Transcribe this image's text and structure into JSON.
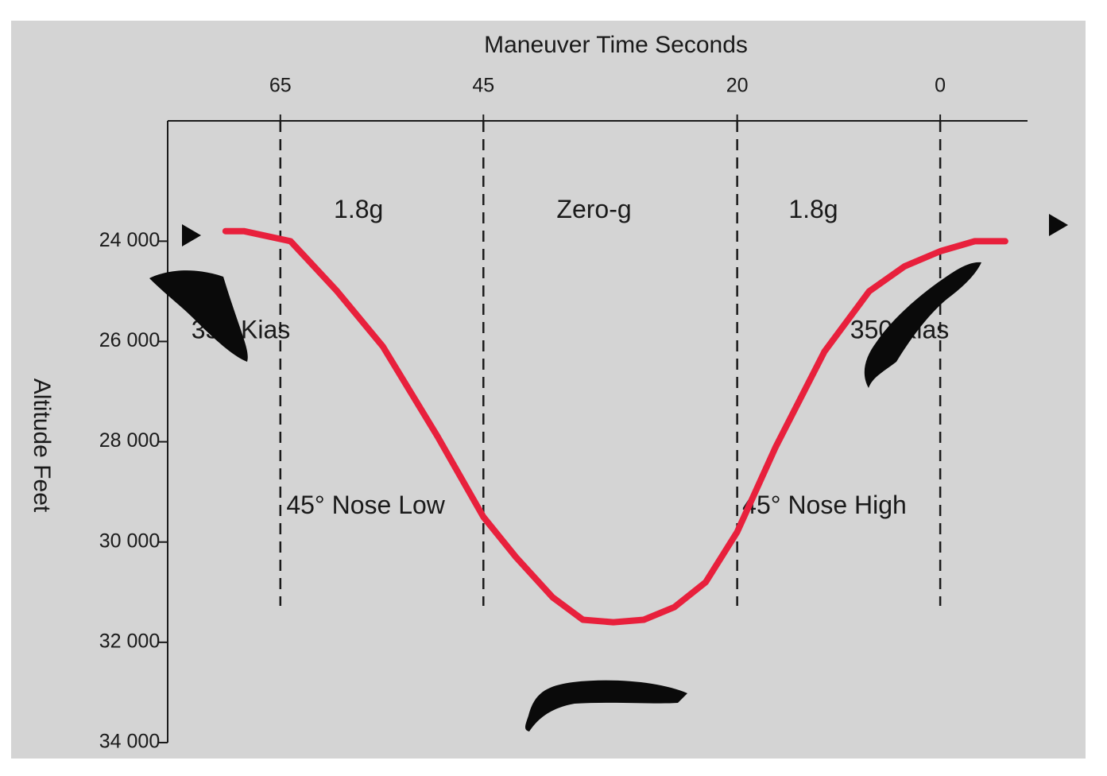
{
  "chart_data": {
    "type": "line",
    "note_mirrored": true,
    "title": "",
    "xlabel": "Maneuver Time Seconds",
    "ylabel": "Altitude Feet",
    "x_ticks": [
      {
        "value": 0,
        "label": "0"
      },
      {
        "value": 20,
        "label": "20"
      },
      {
        "value": 45,
        "label": "45"
      },
      {
        "value": 65,
        "label": "65"
      }
    ],
    "y_ticks": [
      {
        "value": 24000,
        "label": "24 000"
      },
      {
        "value": 26000,
        "label": "26 000"
      },
      {
        "value": 28000,
        "label": "28 000"
      },
      {
        "value": 30000,
        "label": "30 000"
      },
      {
        "value": 32000,
        "label": "32 000"
      },
      {
        "value": 34000,
        "label": "34 000"
      }
    ],
    "xlim": [
      -8.6,
      76.1
    ],
    "ylim": [
      34000,
      21600
    ],
    "grid": false,
    "phase_lines_x": [
      0,
      20,
      45,
      65
    ],
    "series": [
      {
        "color": "#e8203c",
        "x": [
          -6.4,
          -3.4,
          0,
          3.5,
          7.0,
          11.4,
          16.2,
          20,
          23.1,
          26.2,
          29.2,
          32.2,
          35.2,
          38.2,
          41.8,
          45,
          49.5,
          54.9,
          59.4,
          64,
          68.6,
          70.4
        ],
        "y": [
          24000,
          24000,
          24200,
          24500,
          25000,
          26200,
          28100,
          29800,
          30800,
          31300,
          31550,
          31600,
          31550,
          31100,
          30300,
          29500,
          27900,
          26100,
          25000,
          24000,
          23800,
          23800
        ]
      }
    ],
    "annotations": [
      {
        "text": "1.8g",
        "x": 12.5,
        "y": 23400
      },
      {
        "text": "Zero-g",
        "x": 34.1,
        "y": 23400
      },
      {
        "text": "1.8g",
        "x": 57.3,
        "y": 23400
      },
      {
        "text": "350 Kias",
        "x": 4,
        "y": 25800
      },
      {
        "text": "350 Kias",
        "x": 68.9,
        "y": 25800
      },
      {
        "text": "45° Nose High",
        "x": 11.4,
        "y": 29300
      },
      {
        "text": "45° Nose Low",
        "x": 56.6,
        "y": 29300
      }
    ],
    "arrows": [
      {
        "direction": "right",
        "side": "start"
      },
      {
        "direction": "right",
        "side": "end"
      }
    ],
    "colors": {
      "background": "#d4d4d4",
      "curve": "#e8203c",
      "axis": "#1a1a1a",
      "aircraft": "#0a0a0a"
    }
  }
}
